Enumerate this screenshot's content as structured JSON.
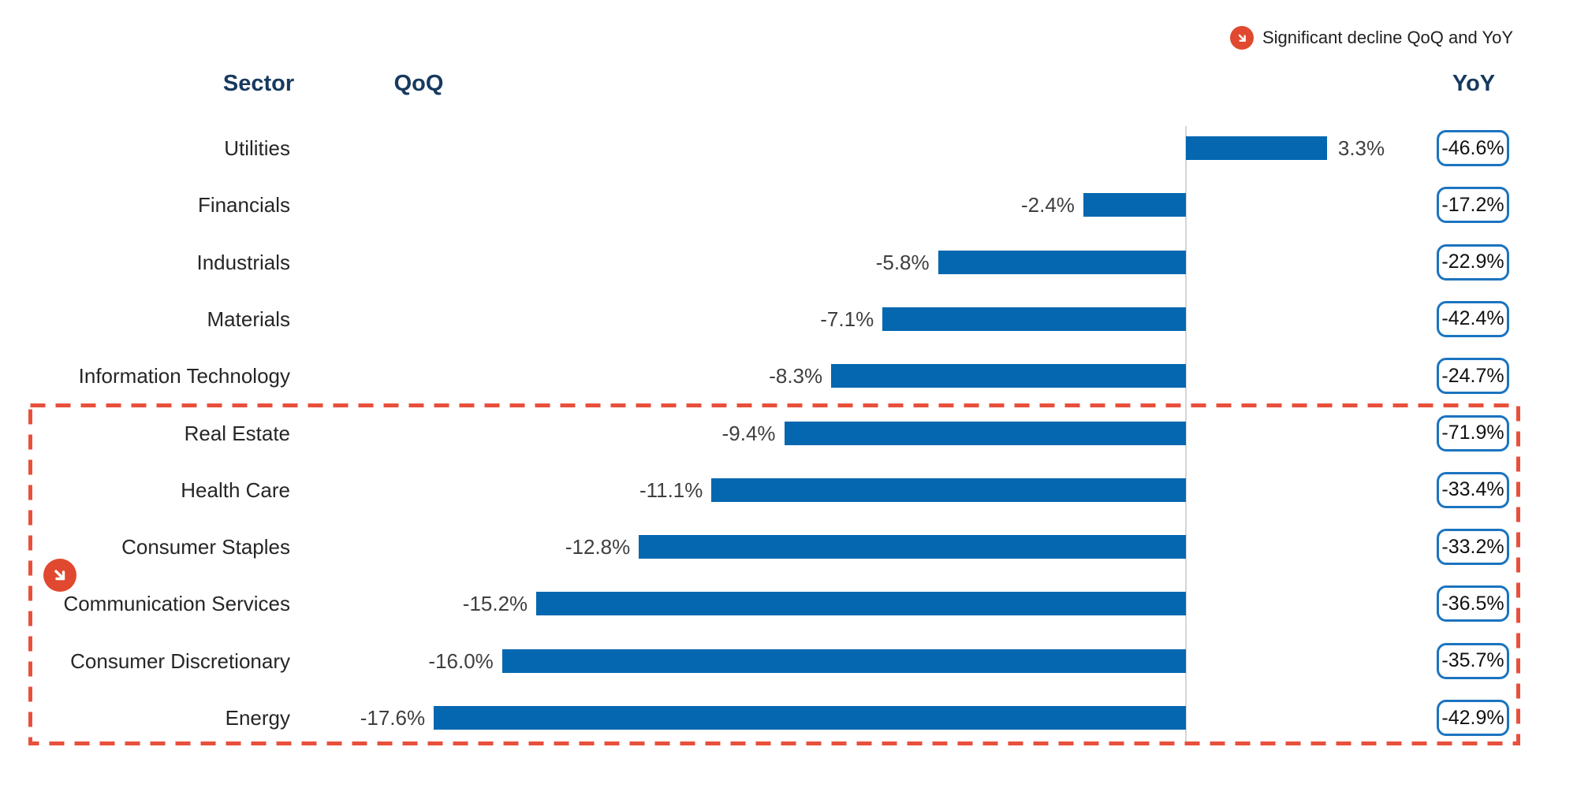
{
  "headers": {
    "sector": "Sector",
    "qoq": "QoQ",
    "yoy": "YoY"
  },
  "legend": {
    "text": "Significant decline QoQ and YoY",
    "icon": "arrow-down-right-circle-icon"
  },
  "chart_data": {
    "type": "bar",
    "orientation": "horizontal",
    "unit": "%",
    "title": "",
    "categories": [
      "Utilities",
      "Financials",
      "Industrials",
      "Materials",
      "Information Technology",
      "Real Estate",
      "Health Care",
      "Consumer Staples",
      "Communication Services",
      "Consumer Discretionary",
      "Energy"
    ],
    "series": [
      {
        "name": "QoQ",
        "values": [
          3.3,
          -2.4,
          -5.8,
          -7.1,
          -8.3,
          -9.4,
          -11.1,
          -12.8,
          -15.2,
          -16.0,
          -17.6
        ],
        "labels": [
          "3.3%",
          "-2.4%",
          "-5.8%",
          "-7.1%",
          "-8.3%",
          "-9.4%",
          "-11.1%",
          "-12.8%",
          "-15.2%",
          "-16.0%",
          "-17.6%"
        ]
      },
      {
        "name": "YoY",
        "values": [
          -46.6,
          -17.2,
          -22.9,
          -42.4,
          -24.7,
          -71.9,
          -33.4,
          -33.2,
          -36.5,
          -35.7,
          -42.9
        ],
        "labels": [
          "-46.6%",
          "-17.2%",
          "-22.9%",
          "-42.4%",
          "-24.7%",
          "-71.9%",
          "-33.4%",
          "-33.2%",
          "-36.5%",
          "-35.7%",
          "-42.9%"
        ]
      }
    ],
    "highlight": {
      "label": "Significant decline QoQ and YoY",
      "categories": [
        "Real Estate",
        "Health Care",
        "Consumer Staples",
        "Communication Services",
        "Consumer Discretionary",
        "Energy"
      ]
    },
    "axis": {
      "zero_line": true,
      "ticks_shown": false,
      "gridlines": false,
      "xlim_hint": [
        -20,
        5
      ]
    }
  },
  "colors": {
    "bar_blue": "#0467B0",
    "header_navy": "#17395F",
    "accent_red": "#E0492F",
    "dash_red": "#E8503C",
    "yoy_border_blue": "#1B74C0",
    "axis_gray": "#D6D6D6"
  }
}
